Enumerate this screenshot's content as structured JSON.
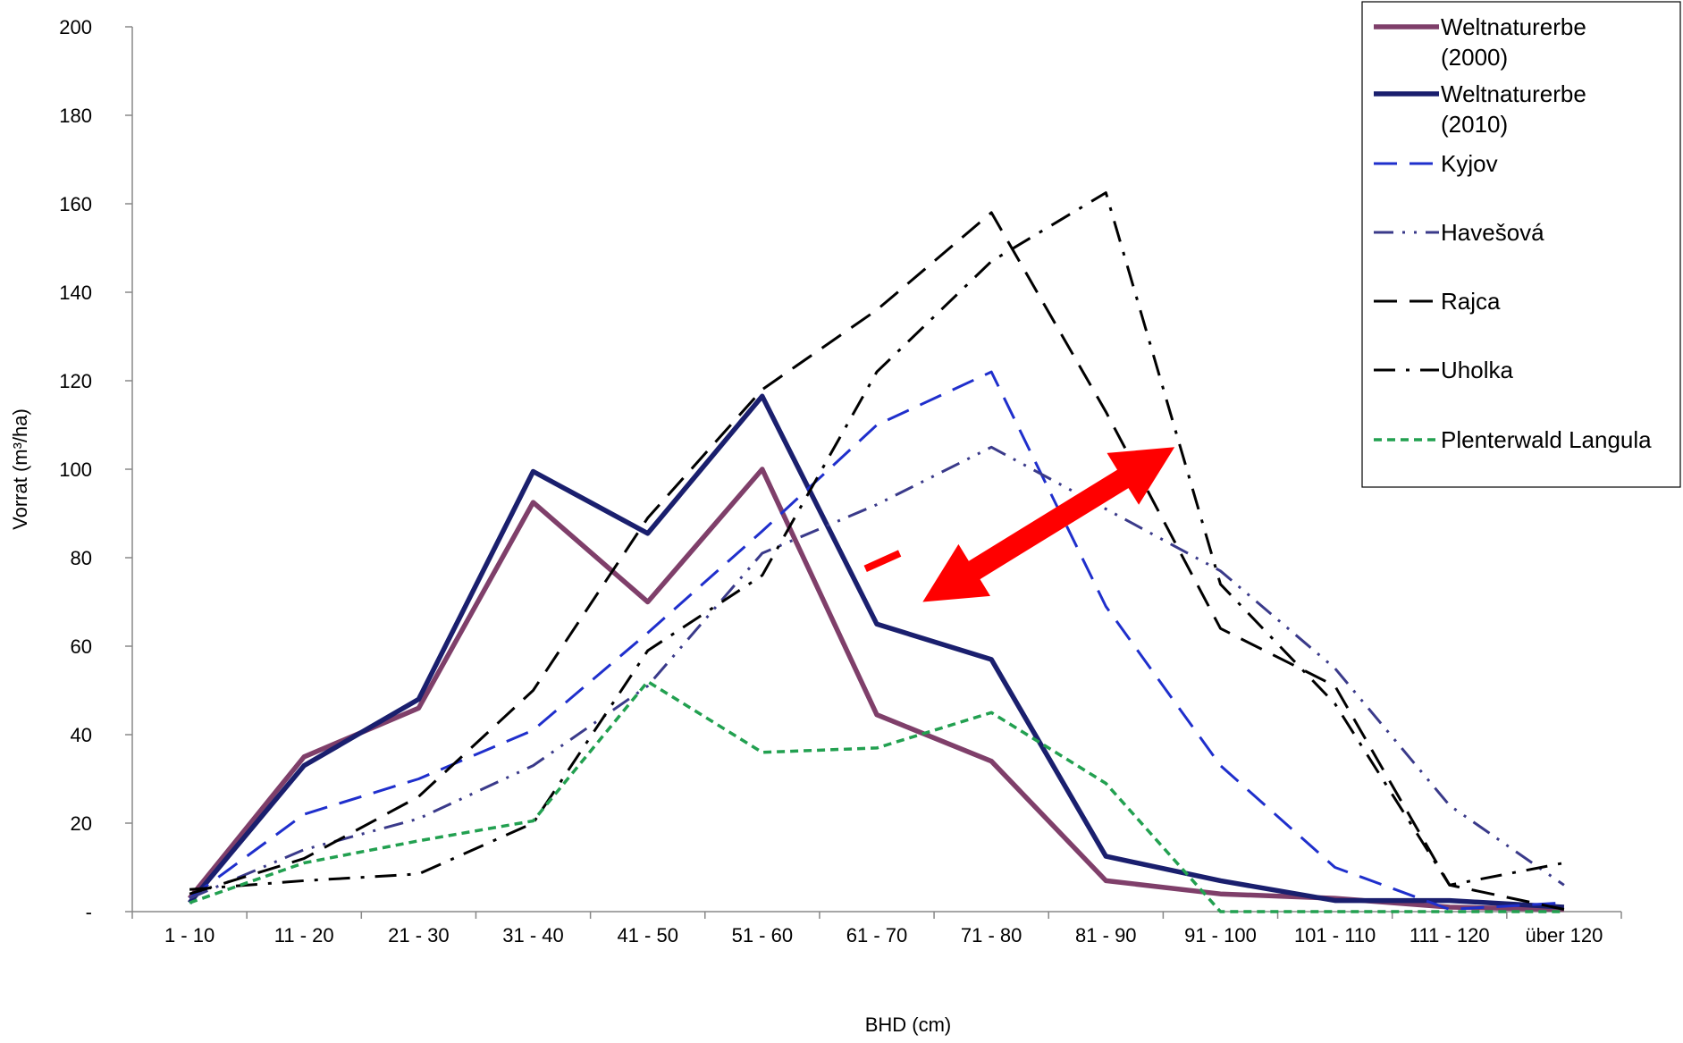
{
  "chart_data": {
    "type": "line",
    "title": "",
    "xlabel": "BHD (cm)",
    "ylabel": "Vorrat (m³/ha)",
    "ylim": [
      0,
      200
    ],
    "yticks": [
      0,
      20,
      40,
      60,
      80,
      100,
      120,
      140,
      160,
      180,
      200
    ],
    "ytick_labels": [
      "-",
      "20",
      "40",
      "60",
      "80",
      "100",
      "120",
      "140",
      "160",
      "180",
      "200"
    ],
    "categories": [
      "1 - 10",
      "11 - 20",
      "21 - 30",
      "31 - 40",
      "41 - 50",
      "51 - 60",
      "61 - 70",
      "71 - 80",
      "81 - 90",
      "91 - 100",
      "101 - 110",
      "111 - 120",
      "über 120"
    ],
    "grid": false,
    "legend_position": "top-right",
    "series": [
      {
        "name": "Weltnaturerbe (2000)",
        "legend_lines": [
          "Weltnaturerbe",
          "(2000)"
        ],
        "color": "#7f3f6a",
        "style": "solid-thick",
        "values": [
          3,
          35,
          46,
          92.5,
          70,
          100,
          44.5,
          34,
          7,
          4,
          3,
          1,
          0.5
        ]
      },
      {
        "name": "Weltnaturerbe (2010)",
        "legend_lines": [
          "Weltnaturerbe",
          "(2010)"
        ],
        "color": "#1a1f6e",
        "style": "solid-thick",
        "values": [
          2,
          33,
          48,
          99.5,
          85.5,
          116.5,
          65,
          57,
          12.5,
          7,
          2.5,
          2.5,
          1
        ]
      },
      {
        "name": "Kyjov",
        "legend_lines": [
          "Kyjov"
        ],
        "color": "#1f2fcc",
        "style": "longdash",
        "values": [
          3,
          22,
          30,
          41,
          63,
          86,
          110,
          122,
          69,
          33,
          10,
          0.5,
          2
        ]
      },
      {
        "name": "Havešová",
        "legend_lines": [
          "Havešová"
        ],
        "color": "#3a3a8a",
        "style": "dashdotdot",
        "values": [
          3,
          14,
          21,
          33,
          51,
          81,
          92,
          105,
          91,
          77,
          55,
          24,
          6
        ]
      },
      {
        "name": "Rajca",
        "legend_lines": [
          "Rajca"
        ],
        "color": "#000000",
        "style": "longdash",
        "values": [
          4,
          12,
          26,
          50,
          89,
          118,
          136,
          158,
          113,
          64,
          51,
          6,
          0.5
        ]
      },
      {
        "name": "Uholka",
        "legend_lines": [
          "Uholka"
        ],
        "color": "#000000",
        "style": "dashdot",
        "values": [
          5,
          7,
          8.5,
          20,
          59,
          76,
          122,
          147,
          162.5,
          74,
          47,
          6,
          11
        ]
      },
      {
        "name": "Plenterwald Langula",
        "legend_lines": [
          "Plenterwald Langula"
        ],
        "color": "#22a050",
        "style": "shortdash",
        "values": [
          2,
          11,
          16,
          20.5,
          52,
          36,
          37,
          45,
          29,
          0,
          0,
          0,
          0
        ]
      }
    ],
    "annotations": [
      {
        "type": "double-arrow",
        "color": "#ff0000",
        "from": {
          "x": 6.4,
          "y": 70
        },
        "to": {
          "x": 8.6,
          "y": 105
        }
      },
      {
        "type": "bar-segment",
        "color": "#ff0000",
        "from": {
          "x": 5.9,
          "y": 77.5
        },
        "to": {
          "x": 6.2,
          "y": 81
        }
      }
    ]
  }
}
